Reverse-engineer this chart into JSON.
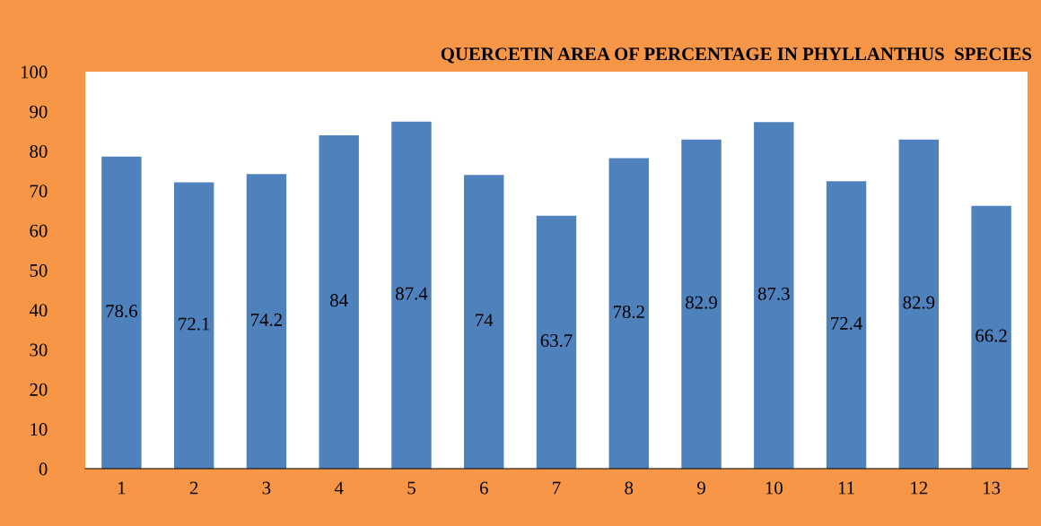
{
  "chart_data": {
    "type": "bar",
    "title": "QUERCETIN AREA OF PERCENTAGE IN PHYLLANTHUS  SPECIES",
    "categories": [
      "1",
      "2",
      "3",
      "4",
      "5",
      "6",
      "7",
      "8",
      "9",
      "10",
      "11",
      "12",
      "13"
    ],
    "values": [
      78.6,
      72.1,
      74.2,
      84,
      87.4,
      74,
      63.7,
      78.2,
      82.9,
      87.3,
      72.4,
      82.9,
      66.2
    ],
    "color": "#4f81bd",
    "ylim": [
      0,
      100
    ],
    "yticks": [
      0,
      10,
      20,
      30,
      40,
      50,
      60,
      70,
      80,
      90,
      100
    ],
    "grid": false,
    "legend": false,
    "data_labels": true
  }
}
